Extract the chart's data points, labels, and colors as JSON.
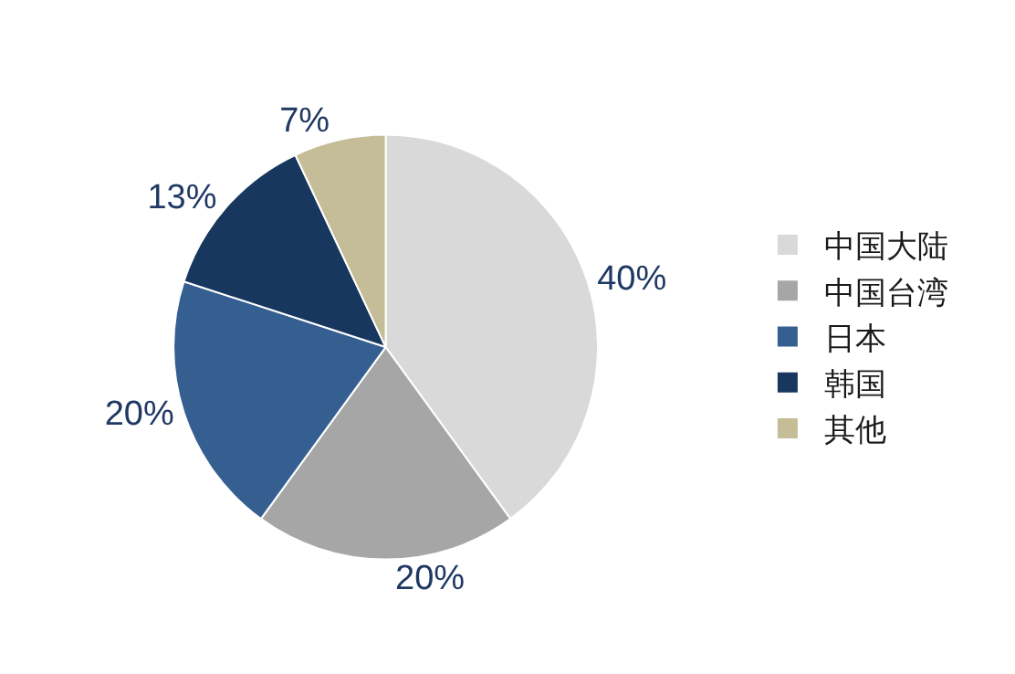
{
  "chart_data": {
    "type": "pie",
    "categories": [
      "中国大陆",
      "中国台湾",
      "日本",
      "韩国",
      "其他"
    ],
    "values": [
      40,
      20,
      20,
      13,
      7
    ],
    "value_labels": [
      "40%",
      "20%",
      "20%",
      "13%",
      "7%"
    ],
    "colors": [
      "#d9d9d9",
      "#a6a6a6",
      "#365f91",
      "#17375e",
      "#c4bd97"
    ],
    "legend": "right"
  }
}
